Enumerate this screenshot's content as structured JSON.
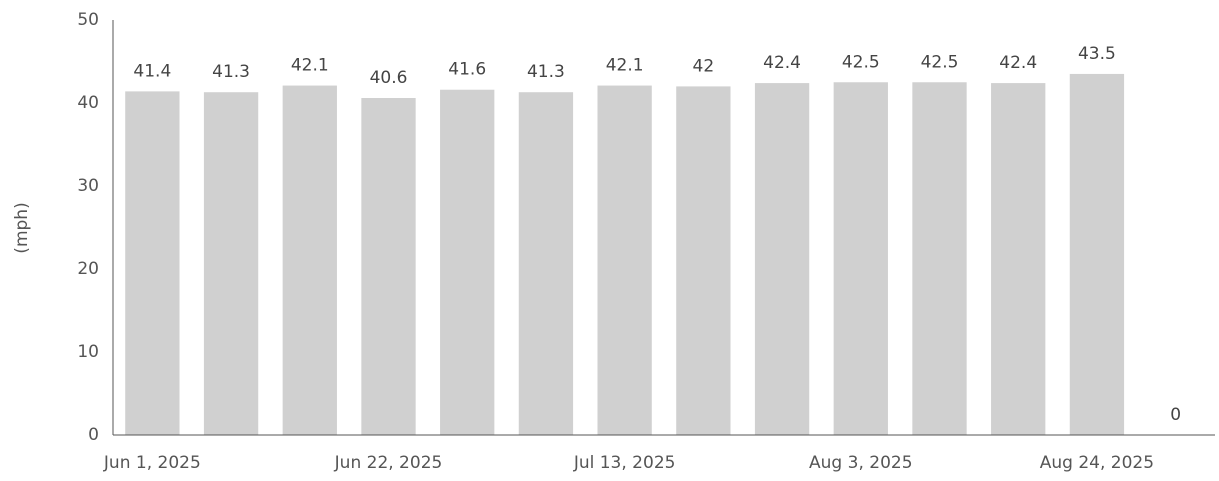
{
  "chart_data": {
    "type": "bar",
    "y_label": "(mph)",
    "categories": [
      "Jun 1, 2025",
      null,
      null,
      "Jun 22, 2025",
      null,
      null,
      "Jul 13, 2025",
      null,
      null,
      "Aug 3, 2025",
      null,
      null,
      "Aug 24, 2025",
      null
    ],
    "values": [
      41.4,
      41.3,
      42.1,
      40.6,
      41.6,
      41.3,
      42.1,
      42,
      42.4,
      42.5,
      42.5,
      42.4,
      43.5,
      0
    ],
    "color": "#d0d0d0",
    "ylim": [
      0,
      50
    ],
    "yticks": [
      0,
      10,
      20,
      30,
      40,
      50
    ],
    "grid": false
  }
}
